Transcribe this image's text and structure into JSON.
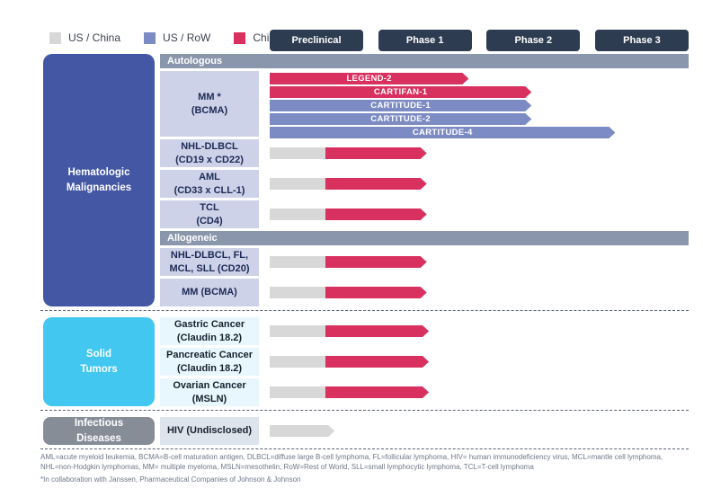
{
  "chart_data": {
    "type": "bar",
    "subtype": "clinical-pipeline",
    "title": "",
    "x_axis": {
      "labels": [
        "Preclinical",
        "Phase 1",
        "Phase 2",
        "Phase 3"
      ],
      "range": [
        0,
        4
      ],
      "button_color": "#2d3c50"
    },
    "regions_legend": [
      {
        "label": "US / China",
        "color": "#d8d8d8"
      },
      {
        "label": "US / RoW",
        "color": "#7c8bc3"
      },
      {
        "label": "China",
        "color": "#d8305f"
      }
    ],
    "sections": [
      {
        "name": "Hematologic\nMalignancies",
        "color": "#4457a4",
        "label_bg": "#cdd2e8",
        "label_color": "#1d2a55",
        "groups": [
          {
            "header": "Autologous",
            "rows": [
              {
                "label": "MM *\n(BCMA)",
                "bars": [
                  {
                    "name": "LEGEND-2",
                    "segments": [
                      {
                        "region": "China",
                        "start": 0,
                        "end": 1.9
                      }
                    ]
                  },
                  {
                    "name": "CARTIFAN-1",
                    "segments": [
                      {
                        "region": "China",
                        "start": 0,
                        "end": 2.5
                      }
                    ]
                  },
                  {
                    "name": "CARTITUDE-1",
                    "segments": [
                      {
                        "region": "US / RoW",
                        "start": 0,
                        "end": 2.5
                      }
                    ]
                  },
                  {
                    "name": "CARTITUDE-2",
                    "segments": [
                      {
                        "region": "US / RoW",
                        "start": 0,
                        "end": 2.5
                      }
                    ]
                  },
                  {
                    "name": "CARTITUDE-4",
                    "segments": [
                      {
                        "region": "US / RoW",
                        "start": 0,
                        "end": 3.3
                      }
                    ]
                  }
                ]
              },
              {
                "label": "NHL-DLBCL\n(CD19 x CD22)",
                "bars": [
                  {
                    "name": "",
                    "segments": [
                      {
                        "region": "US / China",
                        "start": 0,
                        "end": 0.53
                      },
                      {
                        "region": "China",
                        "start": 0.53,
                        "end": 1.5
                      }
                    ]
                  }
                ]
              },
              {
                "label": "AML\n(CD33 x CLL-1)",
                "bars": [
                  {
                    "name": "",
                    "segments": [
                      {
                        "region": "US / China",
                        "start": 0,
                        "end": 0.53
                      },
                      {
                        "region": "China",
                        "start": 0.53,
                        "end": 1.5
                      }
                    ]
                  }
                ]
              },
              {
                "label": "TCL\n(CD4)",
                "bars": [
                  {
                    "name": "",
                    "segments": [
                      {
                        "region": "US / China",
                        "start": 0,
                        "end": 0.53
                      },
                      {
                        "region": "China",
                        "start": 0.53,
                        "end": 1.5
                      }
                    ]
                  }
                ]
              }
            ]
          },
          {
            "header": "Allogeneic",
            "rows": [
              {
                "label": "NHL-DLBCL, FL,\nMCL, SLL (CD20)",
                "bars": [
                  {
                    "name": "",
                    "segments": [
                      {
                        "region": "US / China",
                        "start": 0,
                        "end": 0.53
                      },
                      {
                        "region": "China",
                        "start": 0.53,
                        "end": 1.5
                      }
                    ]
                  }
                ]
              },
              {
                "label": "MM (BCMA)",
                "bars": [
                  {
                    "name": "",
                    "segments": [
                      {
                        "region": "US / China",
                        "start": 0,
                        "end": 0.53
                      },
                      {
                        "region": "China",
                        "start": 0.53,
                        "end": 1.5
                      }
                    ]
                  }
                ]
              }
            ]
          }
        ]
      },
      {
        "name": "Solid\nTumors",
        "color": "#41c7f0",
        "label_bg": "#e8f7fd",
        "label_color": "#16202e",
        "groups": [
          {
            "header": null,
            "rows": [
              {
                "label": "Gastric Cancer\n(Claudin 18.2)",
                "bars": [
                  {
                    "name": "",
                    "segments": [
                      {
                        "region": "US / China",
                        "start": 0,
                        "end": 0.53
                      },
                      {
                        "region": "China",
                        "start": 0.53,
                        "end": 1.52
                      }
                    ]
                  }
                ]
              },
              {
                "label": "Pancreatic Cancer\n(Claudin 18.2)",
                "bars": [
                  {
                    "name": "",
                    "segments": [
                      {
                        "region": "US / China",
                        "start": 0,
                        "end": 0.53
                      },
                      {
                        "region": "China",
                        "start": 0.53,
                        "end": 1.52
                      }
                    ]
                  }
                ]
              },
              {
                "label": "Ovarian Cancer\n(MSLN)",
                "bars": [
                  {
                    "name": "",
                    "segments": [
                      {
                        "region": "US / China",
                        "start": 0,
                        "end": 0.53
                      },
                      {
                        "region": "China",
                        "start": 0.53,
                        "end": 1.52
                      }
                    ]
                  }
                ]
              }
            ]
          }
        ]
      },
      {
        "name": "Infectious\nDiseases",
        "color": "#868d97",
        "label_bg": "#dde4ec",
        "label_color": "#16202e",
        "groups": [
          {
            "header": null,
            "rows": [
              {
                "label": "HIV (Undisclosed)",
                "bars": [
                  {
                    "name": "",
                    "segments": [
                      {
                        "region": "US / China",
                        "start": 0,
                        "end": 0.62
                      }
                    ]
                  }
                ]
              }
            ]
          }
        ]
      }
    ]
  },
  "footnotes": {
    "abbreviations": "AML=acute myeloid leukemia, BCMA=B-cell maturation antigen, DLBCL=diffuse large B-cell lymphoma, FL=follicular lymphoma, HIV= human immunodeficiency virus, MCL=mantle cell lymphoma, NHL=non-Hodgkin lymphomas, MM= multiple myeloma, MSLN=mesothelin, RoW=Rest of World, SLL=small lymphocytic lymphoma, TCL=T-cell lymphoma",
    "collaboration": "*In collaboration with Janssen, Pharmaceutical Companies of Johnson & Johnson"
  }
}
